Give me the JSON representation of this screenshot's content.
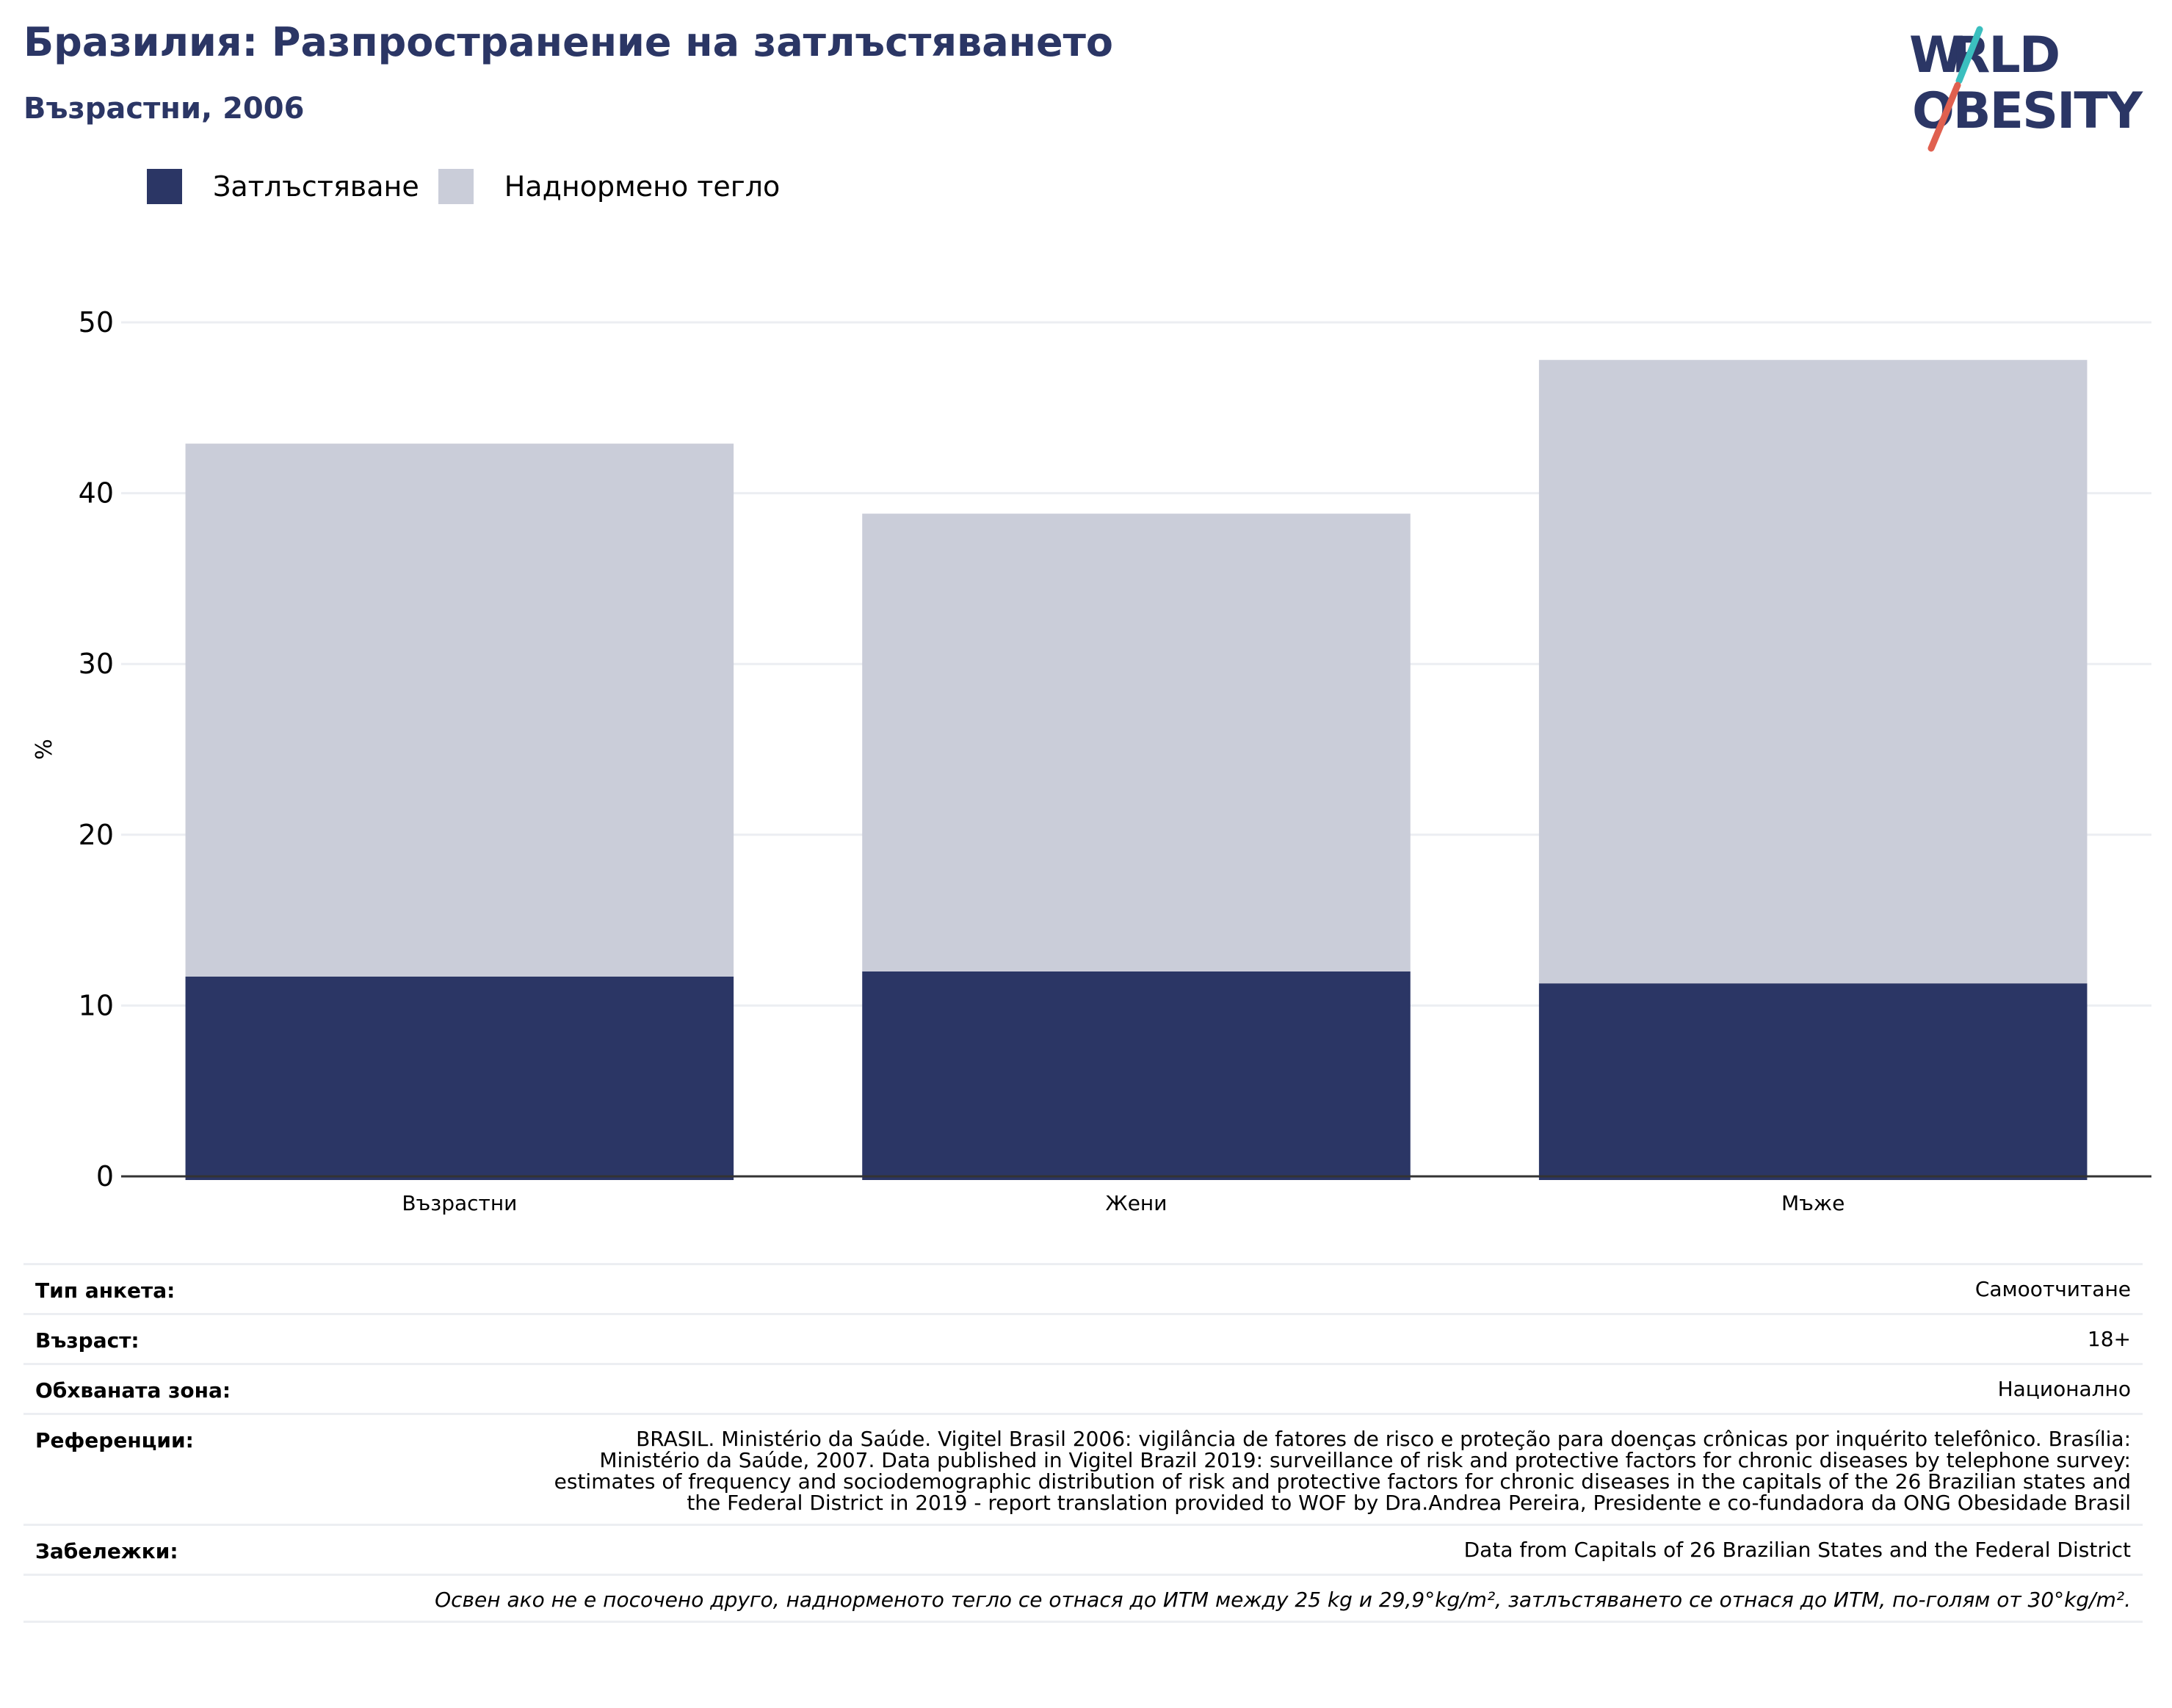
{
  "header": {
    "title": "Бразилия: Разпространение на затлъстяването",
    "subtitle": "Възрастни, 2006"
  },
  "logo": {
    "text_line1": "WORLD",
    "text_line2": "OBESITY",
    "colors": {
      "text": "#2b3665",
      "slash_top": "#3bbfbf",
      "slash_bottom": "#e0604f"
    }
  },
  "legend": [
    {
      "label": "Затлъстяване",
      "color": "#2b3665"
    },
    {
      "label": "Наднормено тегло",
      "color": "#cacdd9"
    }
  ],
  "chart_data": {
    "type": "bar",
    "stacked": true,
    "categories": [
      "Възрастни",
      "Жени",
      "Мъже"
    ],
    "series": [
      {
        "name": "Затлъстяване",
        "values": [
          11.7,
          12.0,
          11.3
        ],
        "color": "#2b3665"
      },
      {
        "name": "Наднормено тегло",
        "values": [
          31.2,
          26.8,
          36.5
        ],
        "color": "#cacdd9"
      }
    ],
    "ylabel": "%",
    "xlabel": "",
    "ylim": [
      0,
      50
    ],
    "yticks": [
      0,
      10,
      20,
      30,
      40,
      50
    ],
    "grid": true
  },
  "meta": {
    "survey_type": {
      "label": "Тип анкета:",
      "value": "Самоотчитане"
    },
    "age": {
      "label": "Възраст:",
      "value": "18+"
    },
    "area": {
      "label": "Обхваната зона:",
      "value": "Национално"
    },
    "references": {
      "label": "Референции:",
      "value": "BRASIL. Ministério da Saúde. Vigitel Brasil 2006: vigilância de fatores de risco e proteção para doenças crônicas por inquérito telefônico. Brasília: Ministério da Saúde, 2007. Data published in Vigitel Brazil 2019: surveillance of risk and protective factors for chronic diseases by telephone survey: estimates of frequency and sociodemographic distribution of risk and protective factors for chronic diseases in the capitals of the 26 Brazilian states and the Federal District in 2019 - report translation provided to WOF by Dra.Andrea Pereira, Presidente e co-fundadora da ONG Obesidade Brasil"
    },
    "notes": {
      "label": "Забележки:",
      "value": "Data from Capitals of 26 Brazilian States and the Federal District"
    },
    "footnote": "Освен ако не е посочено друго, наднорменото тегло се отнася до ИТМ между 25 kg и 29,9°kg/m², затлъстяването се отнася до ИТМ, по-голям от 30°kg/m²."
  }
}
